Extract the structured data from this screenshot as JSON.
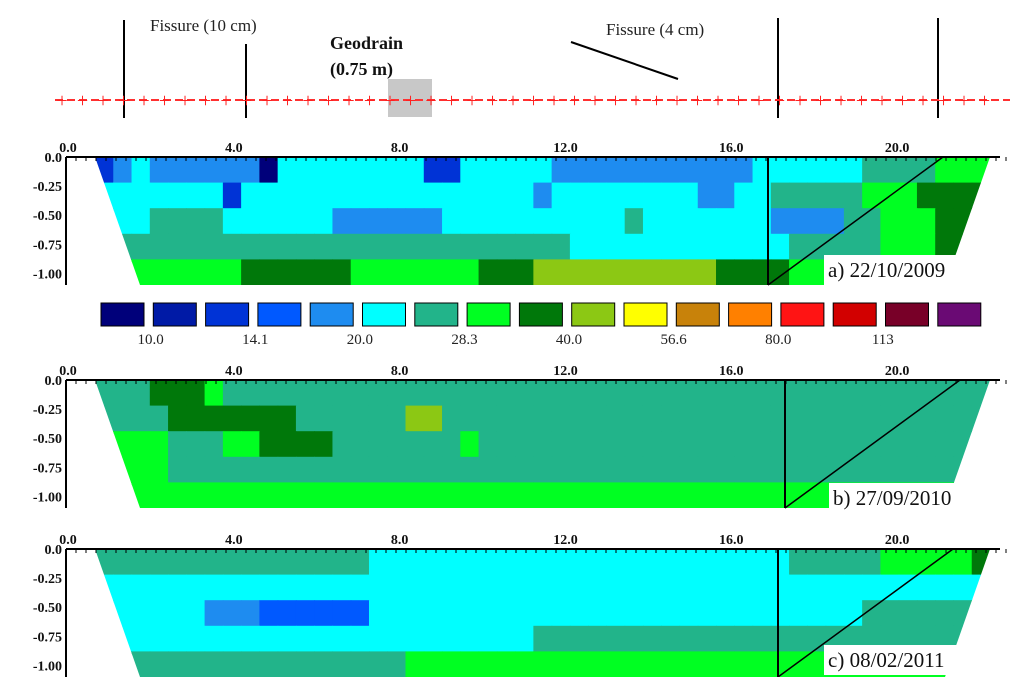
{
  "chart_data": {
    "type": "heatmap",
    "annotations": {
      "fissure_left": "Fissure (10 cm)",
      "fissure_right": "Fissure (4 cm)",
      "geodrain_line1": "Geodrain",
      "geodrain_line2": "(0.75 m)"
    },
    "electrode_marker": "+",
    "x_ticks": [
      "0.0",
      "4.0",
      "8.0",
      "12.0",
      "16.0",
      "20.0"
    ],
    "x_range": [
      0,
      22
    ],
    "y_ticks": [
      "0.0",
      "-0.25",
      "-0.50",
      "-0.75",
      "-1.00"
    ],
    "y_range": [
      -1.1,
      0
    ],
    "colorbar": {
      "labels": [
        "10.0",
        "14.1",
        "20.0",
        "28.3",
        "40.0",
        "56.6",
        "80.0",
        "113"
      ],
      "colors": [
        "#00007a",
        "#001aa6",
        "#0033d6",
        "#0059ff",
        "#1e8cf0",
        "#00ffff",
        "#22b48a",
        "#00ff22",
        "#00780a",
        "#8cc814",
        "#ffff00",
        "#c8820a",
        "#ff8000",
        "#ff1414",
        "#d20000",
        "#780028",
        "#6a0a74"
      ]
    },
    "panels": [
      {
        "title": "a) 22/10/2009",
        "rows": [
          "2454444440555555552255555444444444445555556666777",
          "5555555255555555555555554555555554455666667778888",
          "5556666555555444444555555555565555555444466777888",
          "6666666666666666666666666655555555555566666777888",
          "7777777788888877777778889999999999888877777788888"
        ]
      },
      {
        "title": "b) 27/09/2010",
        "rows": [
          "6668887666666666666666666666666666666666666666666",
          "6666888888866666699666666666666666666666666666666",
          "7777666778888666666676666666666666666666666666666",
          "7777666666666666666666666666666666666666666666666",
          "7777777777777777777777777777777777777777777777777"
        ]
      },
      {
        "title": "c) 08/02/2011",
        "rows": [
          "6666666666666665555555555555555555555566666777778",
          "5555555555555555555555555555555555555555555555555",
          "5555554443333335555555555555555555555555556666667",
          "5555555555555555555555556666666666666666666666666",
          "6666666666666666677777777777777777777777777777777"
        ]
      }
    ]
  }
}
